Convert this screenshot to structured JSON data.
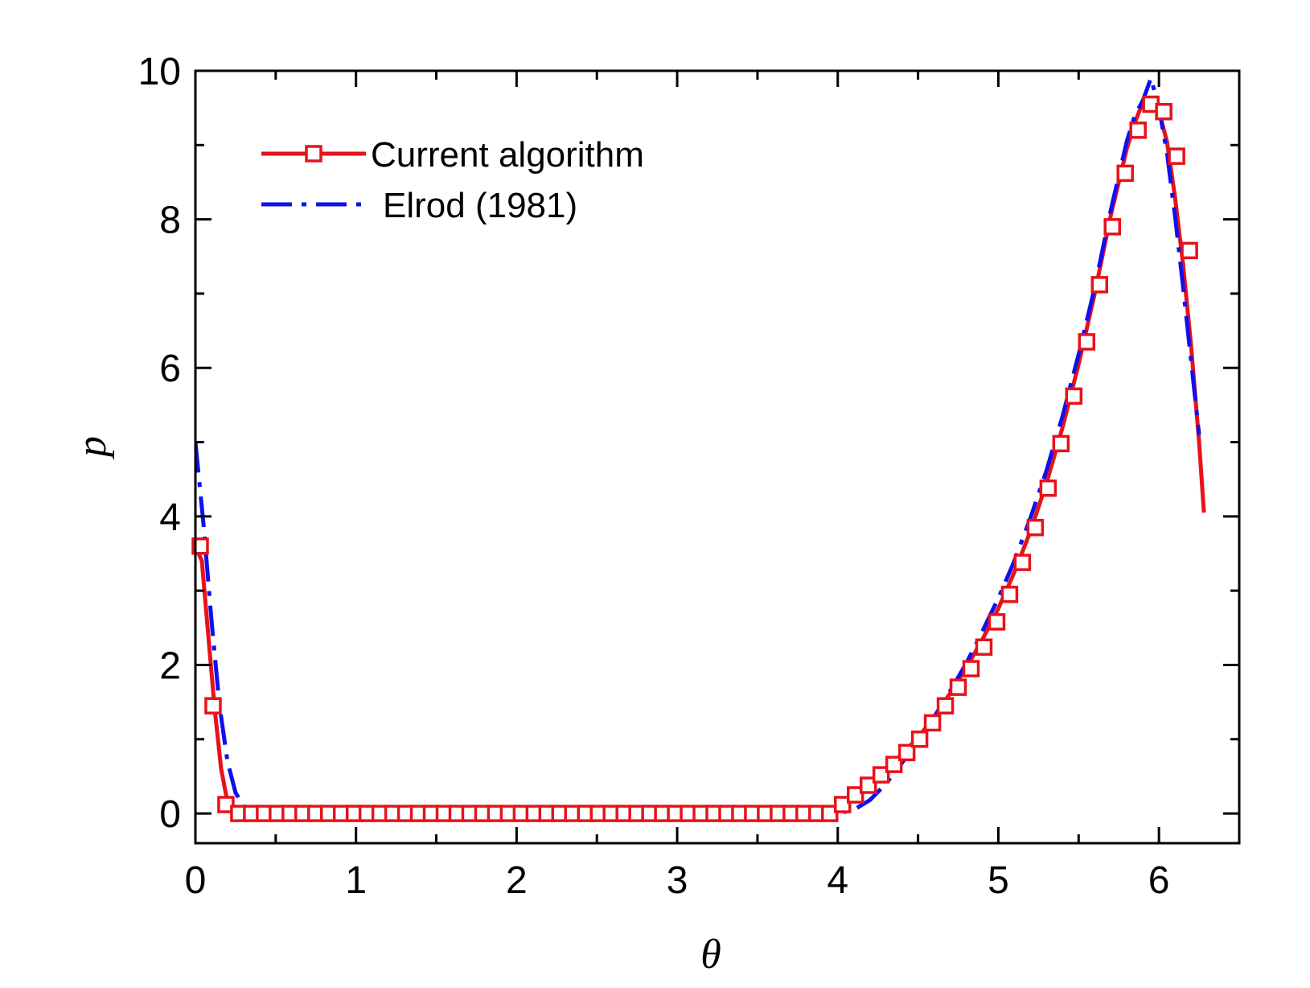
{
  "chart_data": {
    "type": "line",
    "title": "",
    "xlabel": "θ",
    "ylabel": "p",
    "xlim": [
      0,
      6.5
    ],
    "ylim": [
      -0.4,
      10
    ],
    "x_ticks": [
      0,
      1,
      2,
      3,
      4,
      5,
      6
    ],
    "y_ticks": [
      0,
      2,
      4,
      6,
      8,
      10
    ],
    "x_tick_labels": [
      "0",
      "1",
      "2",
      "3",
      "4",
      "5",
      "6"
    ],
    "y_tick_labels": [
      "0",
      "2",
      "4",
      "6",
      "8",
      "10"
    ],
    "grid": false,
    "legend_position": "top-left",
    "series": [
      {
        "name": "Current algorithm",
        "color": "#e8121a",
        "line_style": "solid",
        "marker": "open-square",
        "x": [
          0.0,
          0.04,
          0.08,
          0.12,
          0.16,
          0.2,
          0.26,
          0.3,
          0.4,
          0.6,
          1.0,
          2.0,
          3.0,
          3.5,
          3.9,
          4.0,
          4.04,
          4.1,
          4.2,
          4.3,
          4.4,
          4.5,
          4.6,
          4.7,
          4.8,
          4.9,
          5.0,
          5.1,
          5.2,
          5.3,
          5.4,
          5.5,
          5.6,
          5.7,
          5.8,
          5.85,
          5.9,
          5.95,
          6.0,
          6.05,
          6.1,
          6.15,
          6.2,
          6.25,
          6.28
        ],
        "values": [
          3.6,
          3.4,
          2.4,
          1.4,
          0.6,
          0.15,
          0.02,
          0.0,
          0.0,
          0.0,
          0.0,
          0.0,
          0.0,
          0.0,
          0.0,
          0.03,
          0.12,
          0.22,
          0.38,
          0.58,
          0.8,
          1.02,
          1.3,
          1.62,
          1.96,
          2.34,
          2.76,
          3.25,
          3.8,
          4.45,
          5.2,
          6.05,
          7.0,
          8.05,
          8.95,
          9.3,
          9.58,
          9.6,
          9.45,
          9.05,
          8.3,
          7.4,
          6.3,
          5.0,
          4.05
        ],
        "marker_x": [
          0.03,
          0.11,
          0.19,
          0.27,
          0.35,
          0.43,
          0.51,
          0.59,
          0.67,
          0.75,
          0.83,
          0.91,
          0.99,
          1.07,
          1.15,
          1.23,
          1.31,
          1.39,
          1.47,
          1.55,
          1.63,
          1.71,
          1.79,
          1.87,
          1.95,
          2.03,
          2.11,
          2.19,
          2.27,
          2.35,
          2.43,
          2.51,
          2.59,
          2.67,
          2.75,
          2.83,
          2.91,
          2.99,
          3.07,
          3.15,
          3.23,
          3.31,
          3.39,
          3.47,
          3.55,
          3.63,
          3.71,
          3.79,
          3.87,
          3.95,
          4.03,
          4.11,
          4.19,
          4.27,
          4.35,
          4.43,
          4.51,
          4.59,
          4.67,
          4.75,
          4.83,
          4.91,
          4.99,
          5.07,
          5.15,
          5.23,
          5.31,
          5.39,
          5.47,
          5.55,
          5.63,
          5.71,
          5.79,
          5.87,
          5.95,
          6.03,
          6.11,
          6.19
        ],
        "marker_values": [
          3.6,
          1.45,
          0.12,
          0.0,
          0.0,
          0.0,
          0.0,
          0.0,
          0.0,
          0.0,
          0.0,
          0.0,
          0.0,
          0.0,
          0.0,
          0.0,
          0.0,
          0.0,
          0.0,
          0.0,
          0.0,
          0.0,
          0.0,
          0.0,
          0.0,
          0.0,
          0.0,
          0.0,
          0.0,
          0.0,
          0.0,
          0.0,
          0.0,
          0.0,
          0.0,
          0.0,
          0.0,
          0.0,
          0.0,
          0.0,
          0.0,
          0.0,
          0.0,
          0.0,
          0.0,
          0.0,
          0.0,
          0.0,
          0.0,
          0.0,
          0.12,
          0.25,
          0.38,
          0.52,
          0.66,
          0.82,
          1.0,
          1.22,
          1.45,
          1.7,
          1.95,
          2.24,
          2.58,
          2.95,
          3.38,
          3.85,
          4.38,
          4.98,
          5.62,
          6.35,
          7.12,
          7.9,
          8.62,
          9.2,
          9.55,
          9.45,
          8.85,
          7.58
        ]
      },
      {
        "name": "Elrod (1981)",
        "color": "#1010ee",
        "line_style": "dash-dot",
        "marker": "none",
        "x": [
          0.0,
          0.05,
          0.1,
          0.15,
          0.2,
          0.25,
          0.3,
          0.35,
          0.4,
          0.5,
          1.0,
          2.0,
          3.0,
          4.0,
          4.1,
          4.2,
          4.3,
          4.4,
          4.5,
          4.6,
          4.7,
          4.8,
          4.9,
          5.0,
          5.1,
          5.2,
          5.3,
          5.4,
          5.5,
          5.6,
          5.7,
          5.8,
          5.85,
          5.9,
          5.95,
          6.0,
          6.05,
          6.1,
          6.15,
          6.2,
          6.25
        ],
        "values": [
          5.0,
          3.9,
          2.6,
          1.45,
          0.7,
          0.28,
          0.1,
          0.05,
          0.02,
          0.0,
          0.0,
          0.0,
          0.0,
          0.0,
          0.05,
          0.18,
          0.4,
          0.68,
          0.98,
          1.3,
          1.65,
          2.02,
          2.45,
          2.9,
          3.4,
          3.98,
          4.62,
          5.35,
          6.18,
          7.08,
          8.12,
          9.05,
          9.4,
          9.6,
          9.9,
          9.5,
          8.9,
          8.05,
          7.1,
          6.1,
          5.1
        ]
      }
    ]
  }
}
